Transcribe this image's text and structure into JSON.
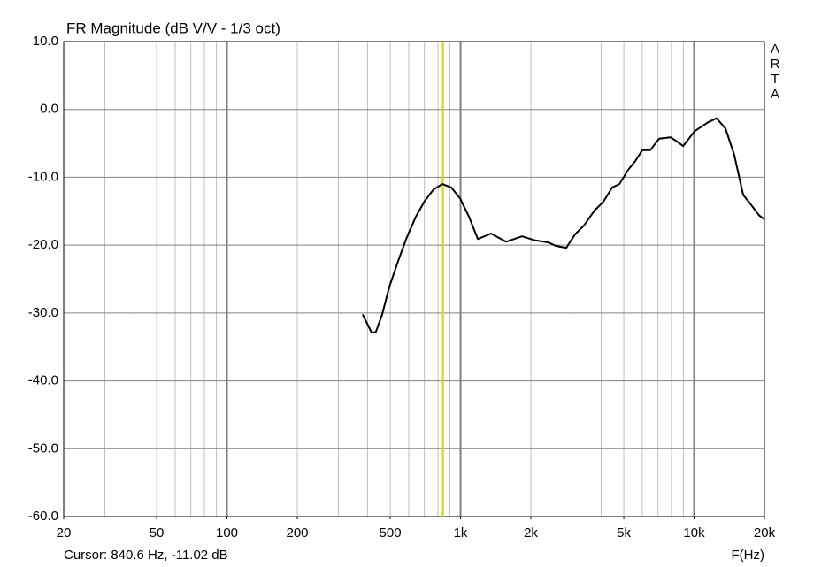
{
  "chart_data": {
    "type": "line",
    "title": "FR Magnitude (dB V/V - 1/3 oct)",
    "x_label": "F(Hz)",
    "watermark": "ARTA",
    "x_scale": "log",
    "grid": true,
    "xlim": [
      20,
      20000
    ],
    "ylim": [
      -60,
      10
    ],
    "xticks": [
      20,
      50,
      100,
      200,
      500,
      {
        "value": 1000,
        "label": "1k"
      },
      {
        "value": 2000,
        "label": "2k"
      },
      {
        "value": 5000,
        "label": "5k"
      },
      {
        "value": 10000,
        "label": "10k"
      },
      {
        "value": 20000,
        "label": "20k"
      }
    ],
    "yticks": [
      {
        "value": 10,
        "label": "10.0"
      },
      {
        "value": 0,
        "label": "0.0"
      },
      {
        "value": -10,
        "label": "-10.0"
      },
      {
        "value": -20,
        "label": "-20.0"
      },
      {
        "value": -30,
        "label": "-30.0"
      },
      {
        "value": -40,
        "label": "-40.0"
      },
      {
        "value": -50,
        "label": "-50.0"
      },
      {
        "value": -60,
        "label": "-60.0"
      }
    ],
    "cursor": {
      "x": 840.6,
      "y": -11.02,
      "label": "Cursor: 840.6 Hz, -11.02 dB",
      "color": "#d4d400"
    },
    "series": [
      {
        "color": "#000000",
        "x": [
          381,
          416,
          434,
          462,
          495,
          541,
          590,
          644,
          702,
          766,
          836,
          912,
          995,
          1086,
          1186,
          1352,
          1567,
          1833,
          2089,
          2382,
          2553,
          2835,
          3093,
          3374,
          3748,
          4090,
          4460,
          4787,
          5222,
          5602,
          6003,
          6490,
          7082,
          7929,
          8433,
          8970,
          10046,
          11460,
          12480,
          13620,
          14860,
          16220,
          17390,
          18970,
          20000
        ],
        "values": [
          -30.2,
          -32.9,
          -32.8,
          -30.2,
          -26.2,
          -22.3,
          -18.8,
          -15.8,
          -13.5,
          -11.8,
          -11.0,
          -11.5,
          -13.1,
          -15.8,
          -19.1,
          -18.3,
          -19.5,
          -18.7,
          -19.3,
          -19.6,
          -20.1,
          -20.4,
          -18.4,
          -17.1,
          -14.9,
          -13.6,
          -11.5,
          -11.0,
          -8.9,
          -7.6,
          -6.0,
          -6.0,
          -4.3,
          -4.1,
          -4.7,
          -5.4,
          -3.2,
          -1.9,
          -1.3,
          -2.8,
          -6.7,
          -12.6,
          -13.9,
          -15.6,
          -16.2
        ]
      }
    ]
  }
}
